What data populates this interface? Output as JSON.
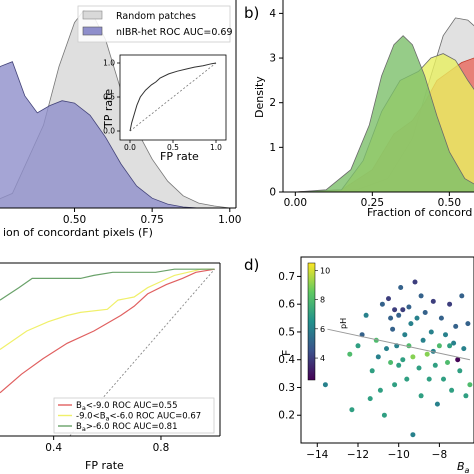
{
  "panels": {
    "a": {
      "chart_data": {
        "type": "area",
        "xlabel": "ion of concordant pixels (F)",
        "xticks": [
          "0.50",
          "0.75",
          "1.00"
        ],
        "xlim": [
          0.26,
          1.02
        ],
        "ylim": [
          0,
          4.1
        ],
        "series": [
          {
            "name": "Random patches",
            "color": "#d9d9d9",
            "x": [
              0.2,
              0.3,
              0.4,
              0.45,
              0.5,
              0.53,
              0.56,
              0.6,
              0.65,
              0.7,
              0.75,
              0.8,
              0.85,
              0.9,
              0.95,
              1.0
            ],
            "y": [
              0.03,
              0.3,
              1.7,
              2.9,
              3.8,
              4.05,
              3.95,
              3.45,
              2.4,
              1.6,
              1.0,
              0.55,
              0.25,
              0.1,
              0.04,
              0.0
            ]
          },
          {
            "name": "nIBR-het ROC AUC=0.69",
            "color": "#8e8ecb",
            "x": [
              0.2,
              0.26,
              0.3,
              0.34,
              0.38,
              0.42,
              0.46,
              0.5,
              0.55,
              0.6,
              0.65,
              0.7,
              0.75,
              0.8,
              0.85,
              0.9
            ],
            "y": [
              1.9,
              2.9,
              3.0,
              2.3,
              1.95,
              2.1,
              2.2,
              2.15,
              1.9,
              1.45,
              0.9,
              0.45,
              0.2,
              0.08,
              0.02,
              0.0
            ]
          }
        ],
        "inset": {
          "type": "line",
          "xlabel": "FP rate",
          "ylabel": "TP rate",
          "xticks": [
            "0.0",
            "0.5",
            "1.0"
          ],
          "yticks": [
            "0.0",
            "0.5",
            "1.0"
          ],
          "roc": {
            "x": [
              0.0,
              0.02,
              0.05,
              0.08,
              0.12,
              0.18,
              0.25,
              0.3,
              0.35,
              0.45,
              0.55,
              0.65,
              0.75,
              0.85,
              0.95,
              1.0
            ],
            "y": [
              0.0,
              0.12,
              0.25,
              0.38,
              0.5,
              0.6,
              0.68,
              0.72,
              0.78,
              0.84,
              0.88,
              0.91,
              0.94,
              0.96,
              0.99,
              1.0
            ]
          }
        }
      }
    },
    "b": {
      "label": "b)",
      "chart_data": {
        "type": "area",
        "xlabel": "Fraction of concord",
        "ylabel": "Density",
        "xticks": [
          "0.00",
          "0.25",
          "0.50"
        ],
        "yticks": [
          "0",
          "1",
          "2",
          "3",
          "4"
        ],
        "xlim": [
          -0.04,
          0.58
        ],
        "ylim": [
          0,
          4.3
        ],
        "series": [
          {
            "color": "#d9d9d9",
            "x": [
              0.0,
              0.2,
              0.3,
              0.38,
              0.44,
              0.48,
              0.52,
              0.56,
              0.6
            ],
            "y": [
              0.0,
              0.05,
              0.3,
              1.2,
              2.6,
              3.5,
              3.9,
              3.85,
              3.6
            ]
          },
          {
            "color": "#e8685c",
            "x": [
              0.0,
              0.15,
              0.25,
              0.32,
              0.38,
              0.42,
              0.46,
              0.5,
              0.54,
              0.58,
              0.6
            ],
            "y": [
              0.0,
              0.05,
              0.5,
              1.3,
              1.6,
              2.0,
              2.5,
              2.7,
              2.9,
              3.0,
              2.95
            ]
          },
          {
            "color": "#e8f060",
            "x": [
              0.0,
              0.15,
              0.22,
              0.28,
              0.34,
              0.4,
              0.44,
              0.48,
              0.52,
              0.56,
              0.6
            ],
            "y": [
              0.0,
              0.05,
              0.7,
              1.8,
              2.5,
              2.7,
              3.0,
              3.1,
              2.95,
              2.5,
              2.1
            ]
          },
          {
            "color": "#7cbf6a",
            "x": [
              0.0,
              0.1,
              0.18,
              0.24,
              0.28,
              0.32,
              0.35,
              0.38,
              0.42,
              0.46,
              0.5,
              0.55,
              0.6
            ],
            "y": [
              0.0,
              0.05,
              0.5,
              1.5,
              2.6,
              3.3,
              3.5,
              3.3,
              2.6,
              1.7,
              0.9,
              0.3,
              0.1
            ]
          }
        ]
      }
    },
    "c": {
      "chart_data": {
        "type": "line",
        "xlabel": "FP rate",
        "xticks": [
          "0.4",
          "0.8"
        ],
        "xlim": [
          0.2,
          1.02
        ],
        "ylim": [
          0.46,
          1.02
        ],
        "series": [
          {
            "name": "-9.0<B_a<-6.0 ROC AUC=0.67",
            "color": "#f0f06a",
            "x": [
              0.2,
              0.3,
              0.38,
              0.45,
              0.5,
              0.6,
              0.64,
              0.7,
              0.75,
              0.8,
              0.85,
              0.9,
              0.95,
              1.0
            ],
            "y": [
              0.74,
              0.8,
              0.83,
              0.85,
              0.86,
              0.87,
              0.9,
              0.91,
              0.94,
              0.96,
              0.98,
              0.99,
              1.0,
              1.0
            ]
          },
          {
            "name": "B_a<-9.0 ROC AUC=0.55",
            "color": "#e06060",
            "x": [
              0.2,
              0.28,
              0.36,
              0.45,
              0.55,
              0.65,
              0.7,
              0.75,
              0.82,
              0.88,
              0.93,
              1.0
            ],
            "y": [
              0.6,
              0.66,
              0.71,
              0.76,
              0.8,
              0.85,
              0.88,
              0.92,
              0.95,
              0.97,
              0.99,
              1.0
            ]
          },
          {
            "name": "B_a>-6.0 ROC AUC=0.81",
            "color": "#6aa26a",
            "x": [
              0.2,
              0.27,
              0.32,
              0.4,
              0.5,
              0.55,
              0.62,
              0.7,
              0.78,
              0.85,
              0.9,
              0.95,
              1.0
            ],
            "y": [
              0.9,
              0.94,
              0.97,
              0.97,
              0.97,
              0.98,
              0.99,
              0.99,
              0.99,
              1.0,
              1.0,
              1.0,
              1.0
            ]
          }
        ],
        "diagonal": true
      },
      "legend": [
        {
          "pre": "B",
          "sub": "a",
          "post": "<-9.0 ROC AUC=0.55",
          "color": "#e06060"
        },
        {
          "pre": "-9.0<B",
          "sub": "a",
          "post": "<-6.0 ROC AUC=0.67",
          "color": "#f0f06a"
        },
        {
          "pre": "B",
          "sub": "a",
          "post": ">-6.0 ROC AUC=0.81",
          "color": "#6aa26a"
        }
      ]
    },
    "d": {
      "label": "d)",
      "chart_data": {
        "type": "scatter",
        "ylabel": "F",
        "xlabel_main": "B",
        "xlabel_sub": "a",
        "xticks": [
          "−14",
          "−12",
          "−10",
          "−8"
        ],
        "xtick_values": [
          -14,
          -12,
          -10,
          -8
        ],
        "yticks": [
          "0.2",
          "0.3",
          "0.4",
          "0.5",
          "0.6",
          "0.7"
        ],
        "ytick_values": [
          0.2,
          0.3,
          0.4,
          0.5,
          0.6,
          0.7
        ],
        "xlim": [
          -14.8,
          -6.3
        ],
        "ylim": [
          0.1,
          0.77
        ],
        "colorbar": {
          "label": "pH",
          "ticks": [
            "4",
            "6",
            "8",
            "10"
          ],
          "range": [
            2.5,
            10.5
          ]
        },
        "fit_line": {
          "x": [
            -13.5,
            -6.5
          ],
          "y": [
            0.51,
            0.4
          ]
        },
        "points": [
          {
            "x": -13.6,
            "y": 0.31,
            "c": 6
          },
          {
            "x": -12.4,
            "y": 0.42,
            "c": 8
          },
          {
            "x": -12.3,
            "y": 0.22,
            "c": 7
          },
          {
            "x": -12.0,
            "y": 0.45,
            "c": 7
          },
          {
            "x": -11.8,
            "y": 0.49,
            "c": 5
          },
          {
            "x": -11.6,
            "y": 0.56,
            "c": 6
          },
          {
            "x": -11.3,
            "y": 0.36,
            "c": 7
          },
          {
            "x": -11.1,
            "y": 0.47,
            "c": 8
          },
          {
            "x": -11.0,
            "y": 0.41,
            "c": 6
          },
          {
            "x": -10.9,
            "y": 0.29,
            "c": 7
          },
          {
            "x": -10.8,
            "y": 0.6,
            "c": 5
          },
          {
            "x": -10.6,
            "y": 0.44,
            "c": 6
          },
          {
            "x": -10.5,
            "y": 0.62,
            "c": 4
          },
          {
            "x": -10.4,
            "y": 0.39,
            "c": 8
          },
          {
            "x": -10.3,
            "y": 0.51,
            "c": 5
          },
          {
            "x": -10.2,
            "y": 0.58,
            "c": 4
          },
          {
            "x": -10.2,
            "y": 0.31,
            "c": 7
          },
          {
            "x": -10.1,
            "y": 0.45,
            "c": 6
          },
          {
            "x": -10.0,
            "y": 0.56,
            "c": 5
          },
          {
            "x": -10.0,
            "y": 0.38,
            "c": 7
          },
          {
            "x": -9.9,
            "y": 0.66,
            "c": 5
          },
          {
            "x": -9.8,
            "y": 0.58,
            "c": 4
          },
          {
            "x": -9.7,
            "y": 0.49,
            "c": 6
          },
          {
            "x": -9.6,
            "y": 0.33,
            "c": 7
          },
          {
            "x": -9.5,
            "y": 0.59,
            "c": 5
          },
          {
            "x": -9.5,
            "y": 0.45,
            "c": 8
          },
          {
            "x": -9.4,
            "y": 0.53,
            "c": 6
          },
          {
            "x": -9.3,
            "y": 0.41,
            "c": 9
          },
          {
            "x": -9.2,
            "y": 0.68,
            "c": 4
          },
          {
            "x": -9.1,
            "y": 0.55,
            "c": 6
          },
          {
            "x": -9.0,
            "y": 0.37,
            "c": 7
          },
          {
            "x": -8.9,
            "y": 0.27,
            "c": 7
          },
          {
            "x": -8.8,
            "y": 0.47,
            "c": 6
          },
          {
            "x": -8.7,
            "y": 0.57,
            "c": 5
          },
          {
            "x": -8.6,
            "y": 0.42,
            "c": 9
          },
          {
            "x": -8.5,
            "y": 0.33,
            "c": 7
          },
          {
            "x": -8.4,
            "y": 0.5,
            "c": 6
          },
          {
            "x": -8.3,
            "y": 0.61,
            "c": 4
          },
          {
            "x": -8.2,
            "y": 0.38,
            "c": 7
          },
          {
            "x": -8.1,
            "y": 0.24,
            "c": 6
          },
          {
            "x": -8.0,
            "y": 0.45,
            "c": 8
          },
          {
            "x": -7.9,
            "y": 0.55,
            "c": 5
          },
          {
            "x": -7.8,
            "y": 0.33,
            "c": 7
          },
          {
            "x": -7.7,
            "y": 0.49,
            "c": 6
          },
          {
            "x": -7.6,
            "y": 0.39,
            "c": 8
          },
          {
            "x": -7.5,
            "y": 0.6,
            "c": 4
          },
          {
            "x": -7.4,
            "y": 0.29,
            "c": 7
          },
          {
            "x": -7.3,
            "y": 0.46,
            "c": 6
          },
          {
            "x": -7.2,
            "y": 0.52,
            "c": 5
          },
          {
            "x": -7.1,
            "y": 0.4,
            "c": 2.6
          },
          {
            "x": -7.0,
            "y": 0.36,
            "c": 7
          },
          {
            "x": -6.9,
            "y": 0.63,
            "c": 5
          },
          {
            "x": -6.8,
            "y": 0.44,
            "c": 6
          },
          {
            "x": -6.7,
            "y": 0.27,
            "c": 7
          },
          {
            "x": -6.6,
            "y": 0.53,
            "c": 5
          },
          {
            "x": -6.5,
            "y": 0.31,
            "c": 8
          },
          {
            "x": -11.4,
            "y": 0.26,
            "c": 7
          },
          {
            "x": -10.7,
            "y": 0.2,
            "c": 7
          },
          {
            "x": -9.3,
            "y": 0.13,
            "c": 6
          },
          {
            "x": -8.9,
            "y": 0.63,
            "c": 5
          },
          {
            "x": -9.8,
            "y": 0.4,
            "c": 7
          },
          {
            "x": -10.4,
            "y": 0.55,
            "c": 5
          },
          {
            "x": -8.3,
            "y": 0.43,
            "c": 6
          },
          {
            "x": -7.5,
            "y": 0.45,
            "c": 7
          }
        ]
      }
    }
  }
}
